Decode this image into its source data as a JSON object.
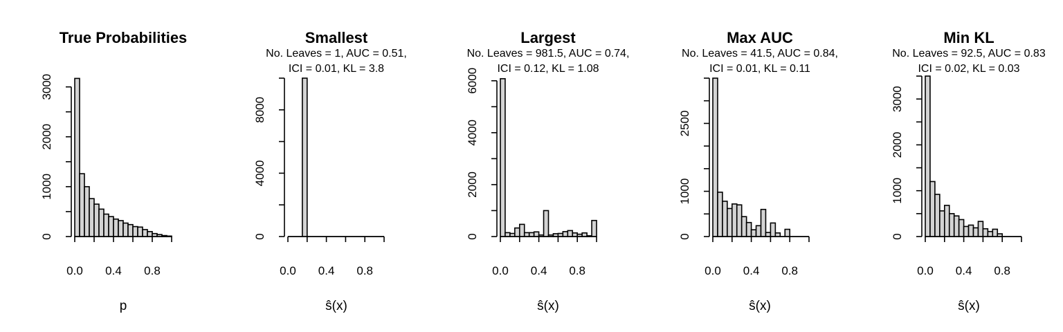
{
  "chart_data": [
    {
      "type": "bar",
      "title": "True Probabilities",
      "subtitle": [],
      "xlabel": "p",
      "xlim": [
        0,
        1
      ],
      "ylim": [
        0,
        3300
      ],
      "xticks": [
        "0.0",
        "0.4",
        "0.8"
      ],
      "xtick_values": [
        0,
        0.4,
        0.8
      ],
      "yticks": [
        "0",
        "1000",
        "2000",
        "3000"
      ],
      "ytick_values": [
        0,
        1000,
        2000,
        3000
      ],
      "ytick_step_drawn": 500,
      "bins": [
        [
          0,
          0.05
        ],
        [
          0.05,
          0.1
        ],
        [
          0.1,
          0.15
        ],
        [
          0.15,
          0.2
        ],
        [
          0.2,
          0.25
        ],
        [
          0.25,
          0.3
        ],
        [
          0.3,
          0.35
        ],
        [
          0.35,
          0.4
        ],
        [
          0.4,
          0.45
        ],
        [
          0.45,
          0.5
        ],
        [
          0.5,
          0.55
        ],
        [
          0.55,
          0.6
        ],
        [
          0.6,
          0.65
        ],
        [
          0.65,
          0.7
        ],
        [
          0.7,
          0.75
        ],
        [
          0.75,
          0.8
        ],
        [
          0.8,
          0.85
        ],
        [
          0.85,
          0.9
        ],
        [
          0.9,
          0.95
        ],
        [
          0.95,
          1.0
        ]
      ],
      "values": [
        3170,
        1260,
        1000,
        760,
        650,
        550,
        450,
        400,
        350,
        320,
        270,
        240,
        200,
        190,
        140,
        100,
        60,
        40,
        20,
        10
      ]
    },
    {
      "type": "bar",
      "title": "Smallest",
      "subtitle": [
        "No. Leaves = 1, AUC = 0.51,",
        "ICI = 0.01, KL = 3.8"
      ],
      "xlabel": "ŝ(x)",
      "xlim": [
        0,
        1
      ],
      "ylim": [
        0,
        10000
      ],
      "xticks": [
        "0.0",
        "0.4",
        "0.8"
      ],
      "xtick_values": [
        0,
        0.4,
        0.8
      ],
      "yticks": [
        "0",
        "4000",
        "8000"
      ],
      "ytick_values": [
        0,
        4000,
        8000
      ],
      "ytick_step_drawn": 2000,
      "bins": [
        [
          0,
          0.05
        ],
        [
          0.05,
          0.1
        ],
        [
          0.1,
          0.15
        ],
        [
          0.15,
          0.2
        ],
        [
          0.2,
          0.25
        ],
        [
          0.25,
          0.3
        ],
        [
          0.3,
          0.35
        ],
        [
          0.35,
          0.4
        ],
        [
          0.4,
          0.45
        ],
        [
          0.45,
          0.5
        ],
        [
          0.5,
          0.55
        ],
        [
          0.55,
          0.6
        ],
        [
          0.6,
          0.65
        ],
        [
          0.65,
          0.7
        ],
        [
          0.7,
          0.75
        ],
        [
          0.75,
          0.8
        ],
        [
          0.8,
          0.85
        ],
        [
          0.85,
          0.9
        ],
        [
          0.9,
          0.95
        ],
        [
          0.95,
          1.0
        ]
      ],
      "values": [
        0,
        0,
        0,
        10000,
        0,
        0,
        0,
        0,
        0,
        0,
        0,
        0,
        0,
        0,
        0,
        0,
        0,
        0,
        0,
        0
      ]
    },
    {
      "type": "bar",
      "title": "Largest",
      "subtitle": [
        "No. Leaves = 981.5, AUC = 0.74,",
        "ICI = 0.12, KL = 1.08"
      ],
      "xlabel": "ŝ(x)",
      "xlim": [
        0,
        1
      ],
      "ylim": [
        0,
        6100
      ],
      "xticks": [
        "0.0",
        "0.4",
        "0.8"
      ],
      "xtick_values": [
        0,
        0.4,
        0.8
      ],
      "yticks": [
        "0",
        "2000",
        "4000",
        "6000"
      ],
      "ytick_values": [
        0,
        2000,
        4000,
        6000
      ],
      "ytick_step_drawn": 1000,
      "bins": [
        [
          0,
          0.05
        ],
        [
          0.05,
          0.1
        ],
        [
          0.1,
          0.15
        ],
        [
          0.15,
          0.2
        ],
        [
          0.2,
          0.25
        ],
        [
          0.25,
          0.3
        ],
        [
          0.3,
          0.35
        ],
        [
          0.35,
          0.4
        ],
        [
          0.4,
          0.45
        ],
        [
          0.45,
          0.5
        ],
        [
          0.5,
          0.55
        ],
        [
          0.55,
          0.6
        ],
        [
          0.6,
          0.65
        ],
        [
          0.65,
          0.7
        ],
        [
          0.7,
          0.75
        ],
        [
          0.75,
          0.8
        ],
        [
          0.8,
          0.85
        ],
        [
          0.85,
          0.9
        ],
        [
          0.9,
          0.95
        ],
        [
          0.95,
          1.0
        ]
      ],
      "values": [
        6080,
        150,
        120,
        330,
        470,
        150,
        150,
        180,
        60,
        1000,
        60,
        110,
        120,
        190,
        230,
        140,
        90,
        140,
        30,
        620
      ]
    },
    {
      "type": "bar",
      "title": "Max AUC",
      "subtitle": [
        "No. Leaves = 41.5, AUC = 0.84,",
        "ICI = 0.01, KL = 0.11"
      ],
      "xlabel": "ŝ(x)",
      "xlim": [
        0,
        1
      ],
      "ylim": [
        0,
        3500
      ],
      "xticks": [
        "0.0",
        "0.4",
        "0.8"
      ],
      "xtick_values": [
        0,
        0.4,
        0.8
      ],
      "yticks": [
        "0",
        "1000",
        "2500"
      ],
      "ytick_values": [
        0,
        1000,
        2500
      ],
      "ytick_step_drawn": 500,
      "bins": [
        [
          0,
          0.05
        ],
        [
          0.05,
          0.1
        ],
        [
          0.1,
          0.15
        ],
        [
          0.15,
          0.2
        ],
        [
          0.2,
          0.25
        ],
        [
          0.25,
          0.3
        ],
        [
          0.3,
          0.35
        ],
        [
          0.35,
          0.4
        ],
        [
          0.4,
          0.45
        ],
        [
          0.45,
          0.5
        ],
        [
          0.5,
          0.55
        ],
        [
          0.55,
          0.6
        ],
        [
          0.6,
          0.65
        ],
        [
          0.65,
          0.7
        ],
        [
          0.7,
          0.75
        ],
        [
          0.75,
          0.8
        ],
        [
          0.8,
          0.85
        ],
        [
          0.85,
          0.9
        ],
        [
          0.9,
          0.95
        ],
        [
          0.95,
          1.0
        ]
      ],
      "values": [
        3500,
        980,
        780,
        620,
        720,
        700,
        440,
        310,
        150,
        240,
        600,
        90,
        300,
        80,
        0,
        160,
        0,
        0,
        0,
        0
      ]
    },
    {
      "type": "bar",
      "title": "Min KL",
      "subtitle": [
        "No. Leaves = 92.5, AUC = 0.83",
        "ICI = 0.02, KL = 0.03"
      ],
      "xlabel": "ŝ(x)",
      "xlim": [
        0,
        1
      ],
      "ylim": [
        0,
        3500
      ],
      "xticks": [
        "0.0",
        "0.4",
        "0.8"
      ],
      "xtick_values": [
        0,
        0.4,
        0.8
      ],
      "yticks": [
        "0",
        "1000",
        "2000",
        "3000"
      ],
      "ytick_values": [
        0,
        1000,
        2000,
        3000
      ],
      "ytick_step_drawn": 500,
      "bins": [
        [
          0,
          0.05
        ],
        [
          0.05,
          0.1
        ],
        [
          0.1,
          0.15
        ],
        [
          0.15,
          0.2
        ],
        [
          0.2,
          0.25
        ],
        [
          0.25,
          0.3
        ],
        [
          0.3,
          0.35
        ],
        [
          0.35,
          0.4
        ],
        [
          0.4,
          0.45
        ],
        [
          0.45,
          0.5
        ],
        [
          0.5,
          0.55
        ],
        [
          0.55,
          0.6
        ],
        [
          0.6,
          0.65
        ],
        [
          0.65,
          0.7
        ],
        [
          0.7,
          0.75
        ],
        [
          0.75,
          0.8
        ],
        [
          0.8,
          0.85
        ],
        [
          0.85,
          0.9
        ],
        [
          0.9,
          0.95
        ],
        [
          0.95,
          1.0
        ]
      ],
      "values": [
        3500,
        1200,
        920,
        560,
        680,
        500,
        450,
        370,
        220,
        250,
        190,
        330,
        170,
        110,
        160,
        60,
        0,
        0,
        0,
        0
      ]
    }
  ]
}
